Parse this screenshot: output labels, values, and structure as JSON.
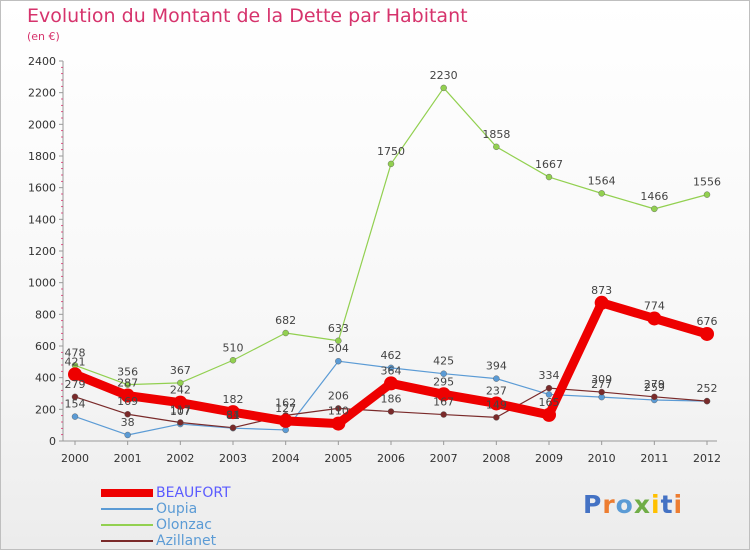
{
  "chart_data": {
    "type": "line",
    "title": "Evolution du Montant de la Dette par Habitant",
    "subtitle": "(en €)",
    "x": [
      "2000",
      "2001",
      "2002",
      "2003",
      "2004",
      "2005",
      "2006",
      "2007",
      "2008",
      "2009",
      "2010",
      "2011",
      "2012"
    ],
    "ylim": [
      0,
      2400
    ],
    "yticks": [
      0,
      200,
      400,
      600,
      800,
      1000,
      1200,
      1400,
      1600,
      1800,
      2000,
      2200,
      2400
    ],
    "grid": false,
    "legend_position": "bottom-left",
    "series": [
      {
        "name": "BEAUFORT",
        "color": "#ee0000",
        "emphasis": true,
        "values": [
          421,
          287,
          242,
          182,
          127,
          110,
          364,
          295,
          237,
          165,
          873,
          774,
          676
        ],
        "labels": [
          "421",
          "287",
          "242",
          "182",
          "127",
          "110",
          "364",
          "295",
          "237",
          "165",
          "873",
          "774",
          "676"
        ]
      },
      {
        "name": "Oupia",
        "color": "#5b9bd5",
        "values": [
          154,
          38,
          107,
          81,
          70,
          504,
          462,
          425,
          394,
          294,
          277,
          259,
          252
        ],
        "labels": [
          "154",
          "38",
          "107",
          "81",
          "",
          "504",
          "462",
          "425",
          "394",
          "",
          "277",
          "259",
          ""
        ]
      },
      {
        "name": "Olonzac",
        "color": "#92d050",
        "values": [
          478,
          356,
          367,
          510,
          682,
          633,
          1750,
          2230,
          1858,
          1667,
          1564,
          1466,
          1556
        ],
        "labels": [
          "478",
          "356",
          "367",
          "510",
          "682",
          "633",
          "1750",
          "2230",
          "1858",
          "1667",
          "1564",
          "1466",
          "1556"
        ]
      },
      {
        "name": "Azillanet",
        "color": "#7a2a2a",
        "values": [
          279,
          169,
          117,
          84,
          162,
          206,
          186,
          167,
          149,
          334,
          309,
          279,
          252
        ],
        "labels": [
          "279",
          "169",
          "117",
          "84",
          "162",
          "206",
          "186",
          "167",
          "149",
          "334",
          "309",
          "279",
          "252"
        ]
      }
    ]
  },
  "logo": {
    "text": "Proxiti",
    "colors": [
      "#4472c4",
      "#ed7d31",
      "#5b9bd5",
      "#70ad47",
      "#ffc000",
      "#4472c4",
      "#ed7d31"
    ]
  }
}
